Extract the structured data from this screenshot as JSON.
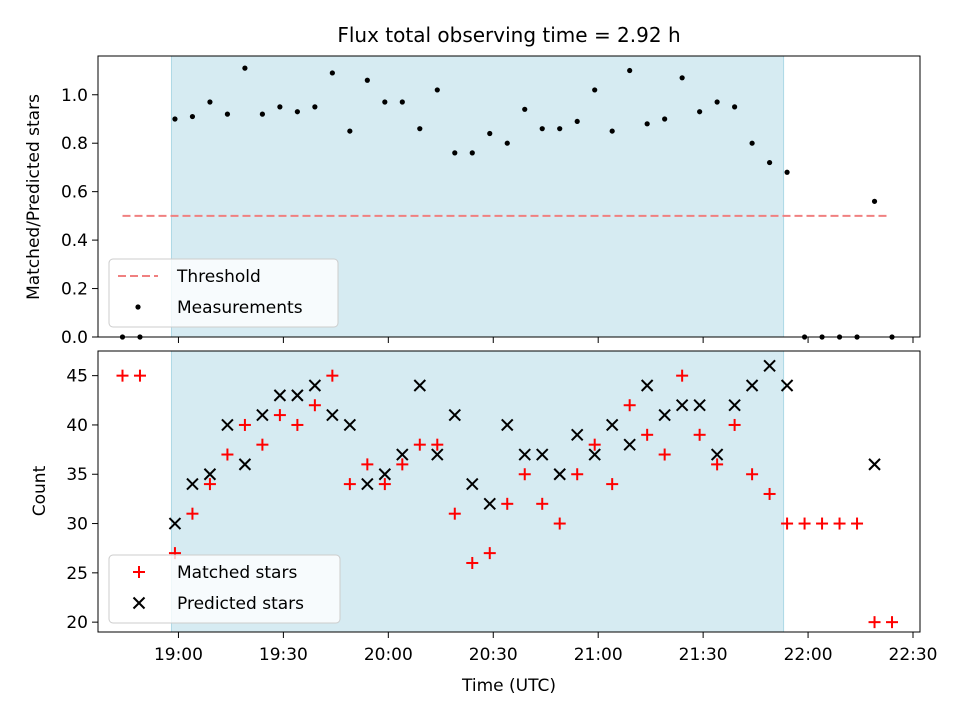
{
  "chart_data": [
    {
      "type": "scatter",
      "title": "Flux total observing time = 2.92 h",
      "ylabel": "Matched/Predicted stars",
      "xlabel": "",
      "ylim": [
        0,
        1.16
      ],
      "yticks": [
        0.0,
        0.2,
        0.4,
        0.6,
        0.8,
        1.0
      ],
      "ytick_labels": [
        "0.0",
        "0.2",
        "0.4",
        "0.6",
        "0.8",
        "1.0"
      ],
      "grid": false,
      "legend_placement": "lower-left",
      "shaded_span": [
        "18:58",
        "21:53"
      ],
      "threshold": {
        "name": "Threshold",
        "value": 0.5,
        "x": [
          "18:44",
          "22:23"
        ],
        "color": "#f08080"
      },
      "series": [
        {
          "name": "Measurements",
          "color": "#000000",
          "marker": "dot",
          "x": [
            "18:44",
            "18:49",
            "18:59",
            "19:04",
            "19:09",
            "19:14",
            "19:19",
            "19:24",
            "19:29",
            "19:34",
            "19:39",
            "19:44",
            "19:49",
            "19:54",
            "19:59",
            "20:04",
            "20:09",
            "20:14",
            "20:19",
            "20:24",
            "20:29",
            "20:34",
            "20:39",
            "20:44",
            "20:49",
            "20:54",
            "20:59",
            "21:04",
            "21:09",
            "21:14",
            "21:19",
            "21:24",
            "21:29",
            "21:34",
            "21:39",
            "21:44",
            "21:49",
            "21:54",
            "21:59",
            "22:04",
            "22:09",
            "22:14",
            "22:19",
            "22:24"
          ],
          "values": [
            0.0,
            0.0,
            0.9,
            0.91,
            0.97,
            0.92,
            1.11,
            0.92,
            0.95,
            0.93,
            0.95,
            1.09,
            0.85,
            1.06,
            0.97,
            0.97,
            0.86,
            1.02,
            0.76,
            0.76,
            0.84,
            0.8,
            0.94,
            0.86,
            0.86,
            0.89,
            1.02,
            0.85,
            1.1,
            0.88,
            0.9,
            1.07,
            0.93,
            0.97,
            0.95,
            0.8,
            0.72,
            0.68,
            0.0,
            0.0,
            0.0,
            0.0,
            0.56,
            0.0
          ]
        }
      ]
    },
    {
      "type": "scatter",
      "title": "",
      "ylabel": "Count",
      "xlabel": "Time (UTC)",
      "ylim": [
        19,
        47.5
      ],
      "yticks": [
        20,
        25,
        30,
        35,
        40,
        45
      ],
      "ytick_labels": [
        "20",
        "25",
        "30",
        "35",
        "40",
        "45"
      ],
      "xlim": [
        "18:37",
        "22:32"
      ],
      "xticks": [
        "19:00",
        "19:30",
        "20:00",
        "20:30",
        "21:00",
        "21:30",
        "22:00",
        "22:30"
      ],
      "xtick_labels": [
        "19:00",
        "19:30",
        "20:00",
        "20:30",
        "21:00",
        "21:30",
        "22:00",
        "22:30"
      ],
      "grid": false,
      "legend_placement": "lower-left",
      "shaded_span": [
        "18:58",
        "21:53"
      ],
      "series": [
        {
          "name": "Matched stars",
          "color": "#ff0000",
          "marker": "plus",
          "x": [
            "18:44",
            "18:49",
            "18:59",
            "19:04",
            "19:09",
            "19:14",
            "19:19",
            "19:24",
            "19:29",
            "19:34",
            "19:39",
            "19:44",
            "19:49",
            "19:54",
            "19:59",
            "20:04",
            "20:09",
            "20:14",
            "20:19",
            "20:24",
            "20:29",
            "20:34",
            "20:39",
            "20:44",
            "20:49",
            "20:54",
            "20:59",
            "21:04",
            "21:09",
            "21:14",
            "21:19",
            "21:24",
            "21:29",
            "21:34",
            "21:39",
            "21:44",
            "21:49",
            "21:54",
            "21:59",
            "22:04",
            "22:09",
            "22:14",
            "22:19",
            "22:24"
          ],
          "values": [
            45,
            45,
            27,
            31,
            34,
            37,
            40,
            38,
            41,
            40,
            42,
            45,
            34,
            36,
            34,
            36,
            38,
            38,
            31,
            26,
            27,
            32,
            35,
            32,
            30,
            35,
            38,
            34,
            42,
            39,
            37,
            45,
            39,
            36,
            40,
            35,
            33,
            30,
            30,
            30,
            30,
            30,
            20,
            20
          ]
        },
        {
          "name": "Predicted stars",
          "color": "#000000",
          "marker": "x",
          "x": [
            "18:59",
            "19:04",
            "19:09",
            "19:14",
            "19:19",
            "19:24",
            "19:29",
            "19:34",
            "19:39",
            "19:44",
            "19:49",
            "19:54",
            "19:59",
            "20:04",
            "20:09",
            "20:14",
            "20:19",
            "20:24",
            "20:29",
            "20:34",
            "20:39",
            "20:44",
            "20:49",
            "20:54",
            "20:59",
            "21:04",
            "21:09",
            "21:14",
            "21:19",
            "21:24",
            "21:29",
            "21:34",
            "21:39",
            "21:44",
            "21:49",
            "21:54",
            "22:19"
          ],
          "values": [
            30,
            34,
            35,
            40,
            36,
            41,
            43,
            43,
            44,
            41,
            40,
            34,
            35,
            37,
            44,
            37,
            41,
            34,
            32,
            40,
            37,
            37,
            35,
            39,
            37,
            40,
            38,
            44,
            41,
            42,
            42,
            37,
            42,
            44,
            46,
            44,
            36
          ]
        }
      ]
    }
  ]
}
